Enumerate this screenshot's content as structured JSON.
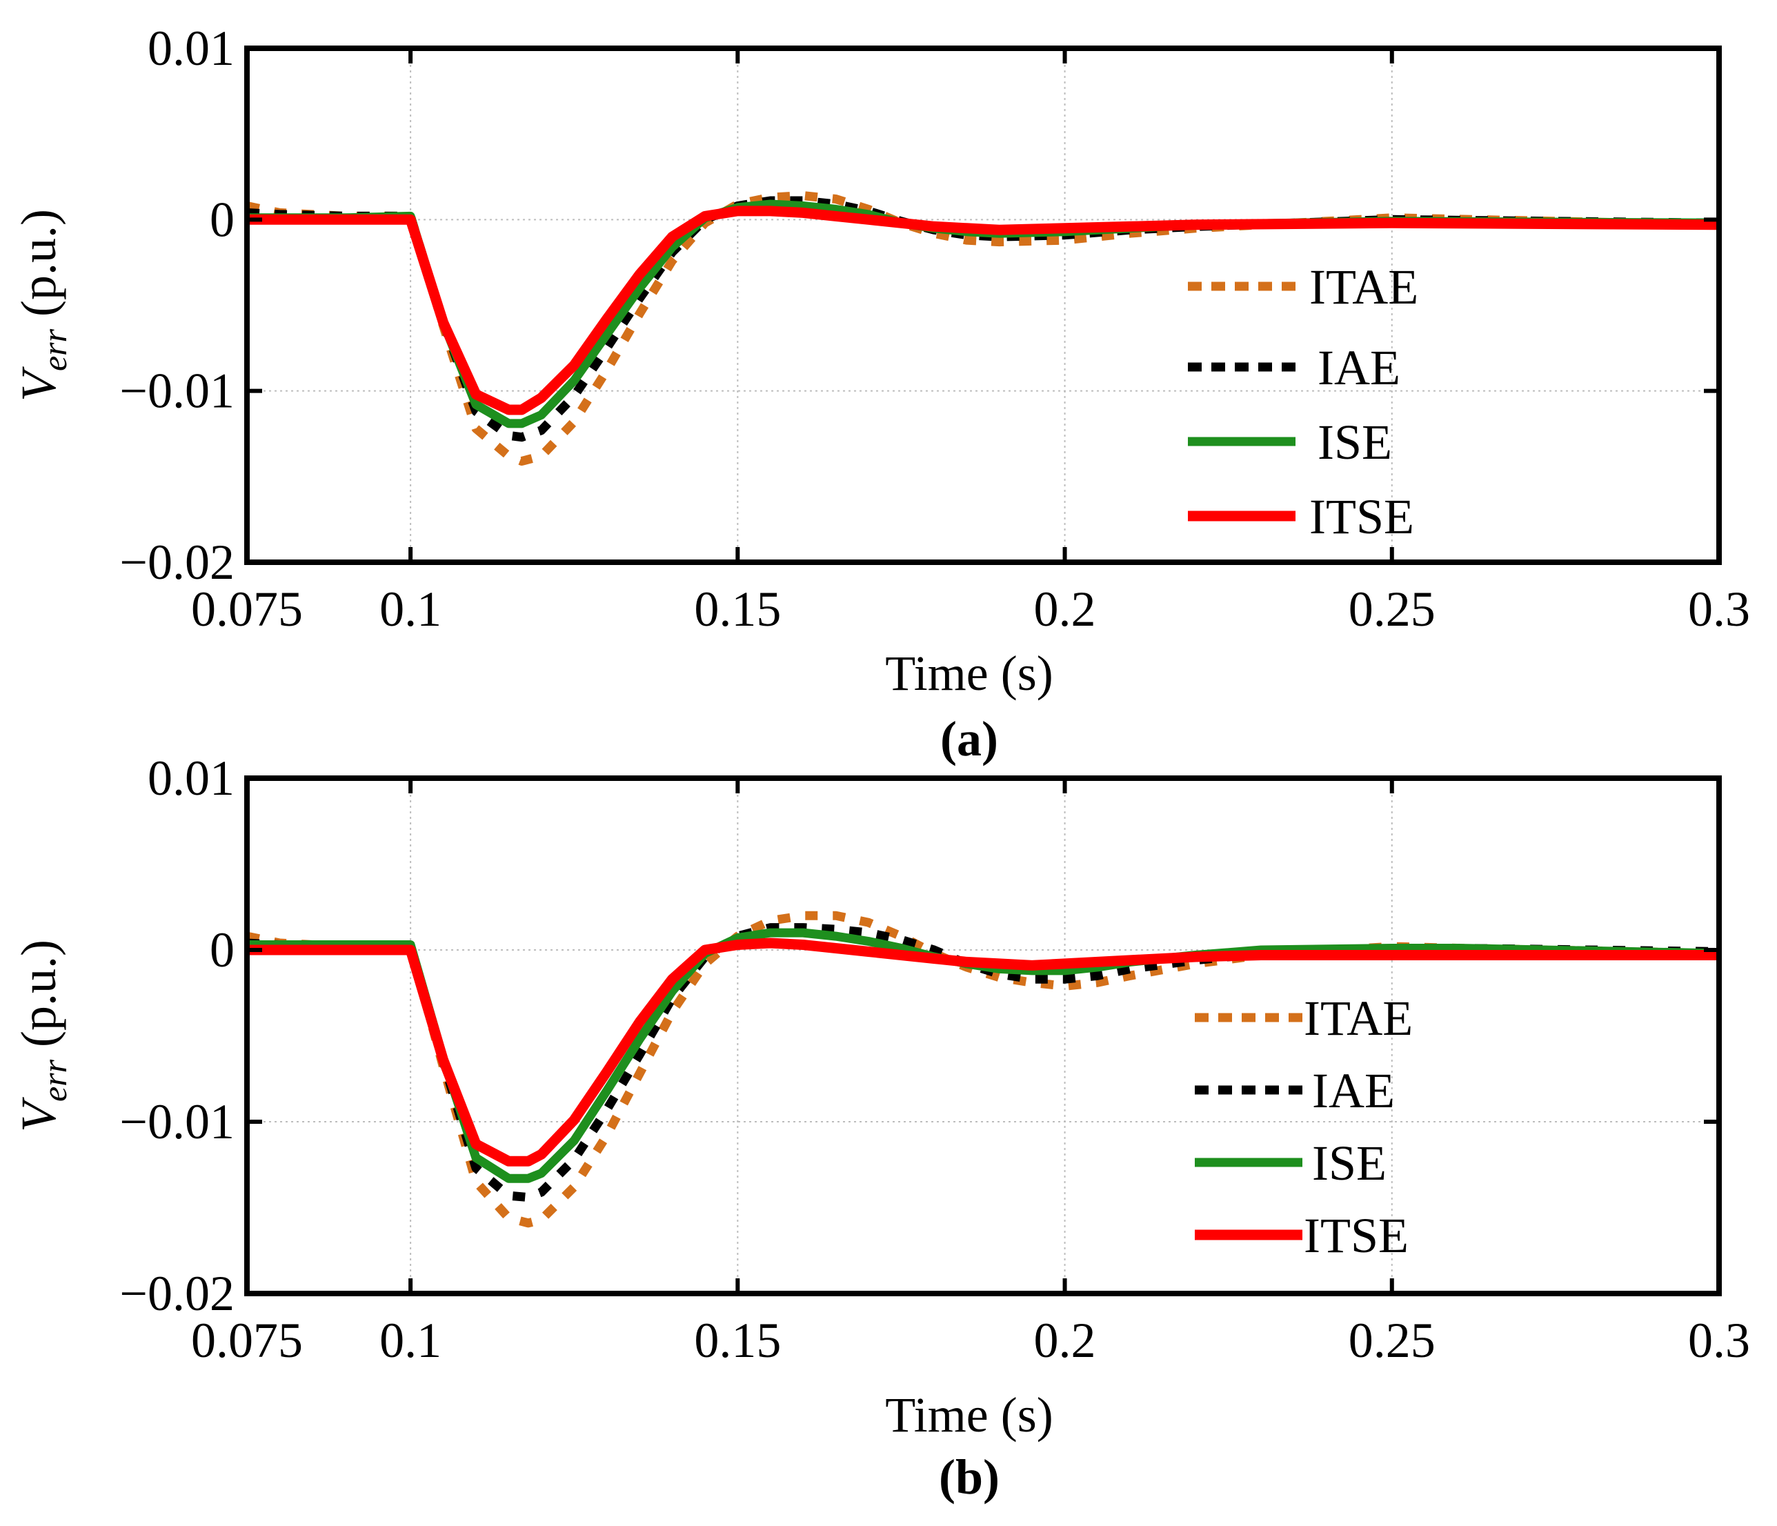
{
  "colors": {
    "ITAE": "#d4701a",
    "IAE": "#000000",
    "ISE": "#1e8f1e",
    "ITSE": "#ff0000",
    "grid": "#bdbdbd"
  },
  "chart_data": [
    {
      "type": "line",
      "panel_label": "(a)",
      "xlabel": "Time (s)",
      "ylabel_main": "V",
      "ylabel_sub": "err",
      "ylabel_unit": " (p.u.)",
      "xlim": [
        0.075,
        0.3
      ],
      "ylim": [
        -0.02,
        0.01
      ],
      "grid": true,
      "legend_position": "right-middle",
      "x_ticks": [
        {
          "value": 0.075,
          "label": "0.075"
        },
        {
          "value": 0.1,
          "label": "0.1"
        },
        {
          "value": 0.15,
          "label": "0.15"
        },
        {
          "value": 0.2,
          "label": "0.2"
        },
        {
          "value": 0.25,
          "label": "0.25"
        },
        {
          "value": 0.3,
          "label": "0.3"
        }
      ],
      "y_ticks": [
        {
          "value": 0.01,
          "label": "0.01"
        },
        {
          "value": 0,
          "label": "0"
        },
        {
          "value": -0.01,
          "label": "−0.01"
        },
        {
          "value": -0.02,
          "label": "−0.02"
        }
      ],
      "series": [
        {
          "name": "ITAE",
          "style": "dashed",
          "x": [
            0.075,
            0.08,
            0.09,
            0.1,
            0.105,
            0.11,
            0.115,
            0.117,
            0.12,
            0.125,
            0.13,
            0.135,
            0.14,
            0.145,
            0.15,
            0.155,
            0.16,
            0.165,
            0.17,
            0.175,
            0.18,
            0.185,
            0.19,
            0.2,
            0.21,
            0.22,
            0.25,
            0.3
          ],
          "values": [
            0.0008,
            0.0004,
            0.0002,
            0.0002,
            -0.0062,
            -0.0122,
            -0.0138,
            -0.0141,
            -0.0138,
            -0.0118,
            -0.0088,
            -0.0055,
            -0.0024,
            -0.0002,
            0.0009,
            0.0013,
            0.0014,
            0.0012,
            0.0006,
            -0.0002,
            -0.0008,
            -0.0012,
            -0.0013,
            -0.0012,
            -0.0008,
            -0.0005,
            0.0001,
            -0.0003
          ]
        },
        {
          "name": "IAE",
          "style": "dashed",
          "x": [
            0.075,
            0.08,
            0.09,
            0.1,
            0.105,
            0.11,
            0.115,
            0.117,
            0.12,
            0.125,
            0.13,
            0.135,
            0.14,
            0.145,
            0.15,
            0.155,
            0.16,
            0.165,
            0.17,
            0.175,
            0.18,
            0.185,
            0.19,
            0.2,
            0.21,
            0.22,
            0.25,
            0.3
          ],
          "values": [
            0.0004,
            0.0003,
            0.0002,
            0.0002,
            -0.006,
            -0.0112,
            -0.0126,
            -0.0127,
            -0.0123,
            -0.0103,
            -0.0075,
            -0.0046,
            -0.0019,
            0.0,
            0.0008,
            0.0011,
            0.0011,
            0.0009,
            0.0005,
            -0.0001,
            -0.0006,
            -0.0009,
            -0.001,
            -0.0009,
            -0.0006,
            -0.0004,
            0.0,
            -0.0002
          ]
        },
        {
          "name": "ISE",
          "style": "solid",
          "x": [
            0.075,
            0.08,
            0.09,
            0.1,
            0.105,
            0.11,
            0.115,
            0.117,
            0.12,
            0.125,
            0.13,
            0.135,
            0.14,
            0.145,
            0.15,
            0.155,
            0.16,
            0.165,
            0.17,
            0.175,
            0.18,
            0.185,
            0.19,
            0.2,
            0.21,
            0.22,
            0.25,
            0.3
          ],
          "values": [
            0.0001,
            0.0001,
            0.0001,
            0.0002,
            -0.006,
            -0.0108,
            -0.0119,
            -0.0119,
            -0.0114,
            -0.0094,
            -0.0067,
            -0.004,
            -0.0016,
            0.0001,
            0.0007,
            0.0009,
            0.0008,
            0.0006,
            0.0003,
            -0.0002,
            -0.0005,
            -0.0007,
            -0.0008,
            -0.0007,
            -0.0005,
            -0.0003,
            -0.0001,
            -0.0002
          ]
        },
        {
          "name": "ITSE",
          "style": "solid",
          "x": [
            0.075,
            0.08,
            0.09,
            0.1,
            0.105,
            0.11,
            0.115,
            0.117,
            0.12,
            0.125,
            0.13,
            0.135,
            0.14,
            0.145,
            0.15,
            0.155,
            0.16,
            0.165,
            0.17,
            0.175,
            0.18,
            0.185,
            0.19,
            0.2,
            0.21,
            0.22,
            0.25,
            0.3
          ],
          "values": [
            0.0,
            0.0,
            0.0,
            0.0,
            -0.006,
            -0.0102,
            -0.0111,
            -0.0111,
            -0.0104,
            -0.0085,
            -0.0058,
            -0.0032,
            -0.001,
            0.0002,
            0.0005,
            0.0005,
            0.0004,
            0.0002,
            0.0,
            -0.0002,
            -0.0004,
            -0.0005,
            -0.0006,
            -0.0005,
            -0.0004,
            -0.0003,
            -0.0002,
            -0.0003
          ]
        }
      ]
    },
    {
      "type": "line",
      "panel_label": "(b)",
      "xlabel": "Time (s)",
      "ylabel_main": "V",
      "ylabel_sub": "err",
      "ylabel_unit": " (p.u.)",
      "xlim": [
        0.075,
        0.3
      ],
      "ylim": [
        -0.02,
        0.01
      ],
      "grid": true,
      "legend_position": "right-middle",
      "x_ticks": [
        {
          "value": 0.075,
          "label": "0.075"
        },
        {
          "value": 0.1,
          "label": "0.1"
        },
        {
          "value": 0.15,
          "label": "0.15"
        },
        {
          "value": 0.2,
          "label": "0.2"
        },
        {
          "value": 0.25,
          "label": "0.25"
        },
        {
          "value": 0.3,
          "label": "0.3"
        }
      ],
      "y_ticks": [
        {
          "value": 0.01,
          "label": "0.01"
        },
        {
          "value": 0,
          "label": "0"
        },
        {
          "value": -0.01,
          "label": "−0.01"
        },
        {
          "value": -0.02,
          "label": "−0.02"
        }
      ],
      "series": [
        {
          "name": "ITAE",
          "style": "dashed",
          "x": [
            0.075,
            0.08,
            0.09,
            0.1,
            0.105,
            0.11,
            0.115,
            0.118,
            0.12,
            0.125,
            0.13,
            0.135,
            0.14,
            0.145,
            0.15,
            0.155,
            0.16,
            0.165,
            0.17,
            0.175,
            0.18,
            0.185,
            0.19,
            0.195,
            0.2,
            0.205,
            0.21,
            0.22,
            0.23,
            0.25,
            0.26,
            0.3
          ],
          "values": [
            0.0008,
            0.0004,
            0.0002,
            0.0002,
            -0.0068,
            -0.0135,
            -0.0156,
            -0.0159,
            -0.0157,
            -0.0138,
            -0.0108,
            -0.0072,
            -0.0036,
            -0.0008,
            0.0008,
            0.0017,
            0.002,
            0.002,
            0.0016,
            0.0008,
            -0.0002,
            -0.001,
            -0.0016,
            -0.0019,
            -0.0021,
            -0.0019,
            -0.0015,
            -0.0008,
            -0.0003,
            0.0002,
            0.0001,
            -0.0002
          ]
        },
        {
          "name": "IAE",
          "style": "dashed",
          "x": [
            0.075,
            0.08,
            0.09,
            0.1,
            0.105,
            0.11,
            0.115,
            0.118,
            0.12,
            0.125,
            0.13,
            0.135,
            0.14,
            0.145,
            0.15,
            0.155,
            0.16,
            0.165,
            0.17,
            0.175,
            0.18,
            0.185,
            0.19,
            0.195,
            0.2,
            0.205,
            0.21,
            0.22,
            0.23,
            0.25,
            0.26,
            0.3
          ],
          "values": [
            0.0004,
            0.0003,
            0.0002,
            0.0002,
            -0.0065,
            -0.0127,
            -0.0143,
            -0.0144,
            -0.0141,
            -0.0122,
            -0.0093,
            -0.0061,
            -0.0028,
            -0.0004,
            0.0008,
            0.0013,
            0.0013,
            0.0012,
            0.001,
            0.0006,
            0.0,
            -0.0008,
            -0.0014,
            -0.0017,
            -0.0017,
            -0.0015,
            -0.0011,
            -0.0006,
            -0.0002,
            0.0001,
            0.0001,
            -0.0001
          ]
        },
        {
          "name": "ISE",
          "style": "solid",
          "x": [
            0.075,
            0.08,
            0.09,
            0.1,
            0.105,
            0.11,
            0.115,
            0.118,
            0.12,
            0.125,
            0.13,
            0.135,
            0.14,
            0.145,
            0.15,
            0.155,
            0.16,
            0.165,
            0.17,
            0.175,
            0.18,
            0.185,
            0.19,
            0.195,
            0.2,
            0.205,
            0.21,
            0.22,
            0.23,
            0.25,
            0.26,
            0.3
          ],
          "values": [
            0.0003,
            0.0003,
            0.0003,
            0.0003,
            -0.0063,
            -0.0121,
            -0.0133,
            -0.0133,
            -0.013,
            -0.0111,
            -0.0082,
            -0.0052,
            -0.0024,
            -0.0002,
            0.0007,
            0.001,
            0.001,
            0.0008,
            0.0005,
            0.0001,
            -0.0004,
            -0.0008,
            -0.0011,
            -0.0012,
            -0.0012,
            -0.001,
            -0.0007,
            -0.0003,
            0.0,
            0.0001,
            0.0001,
            -0.0002
          ]
        },
        {
          "name": "ITSE",
          "style": "solid",
          "x": [
            0.075,
            0.08,
            0.09,
            0.1,
            0.105,
            0.11,
            0.115,
            0.118,
            0.12,
            0.125,
            0.13,
            0.135,
            0.14,
            0.145,
            0.15,
            0.155,
            0.16,
            0.165,
            0.17,
            0.175,
            0.18,
            0.185,
            0.19,
            0.195,
            0.2,
            0.205,
            0.21,
            0.22,
            0.23,
            0.25,
            0.26,
            0.3
          ],
          "values": [
            0.0,
            0.0,
            0.0,
            0.0,
            -0.0064,
            -0.0113,
            -0.0123,
            -0.0123,
            -0.0119,
            -0.0099,
            -0.0071,
            -0.0042,
            -0.0017,
            0.0,
            0.0003,
            0.0004,
            0.0003,
            0.0001,
            -0.0001,
            -0.0003,
            -0.0005,
            -0.0007,
            -0.0008,
            -0.0009,
            -0.0008,
            -0.0007,
            -0.0006,
            -0.0004,
            -0.0003,
            -0.0003,
            -0.0003,
            -0.0003
          ]
        }
      ]
    }
  ]
}
